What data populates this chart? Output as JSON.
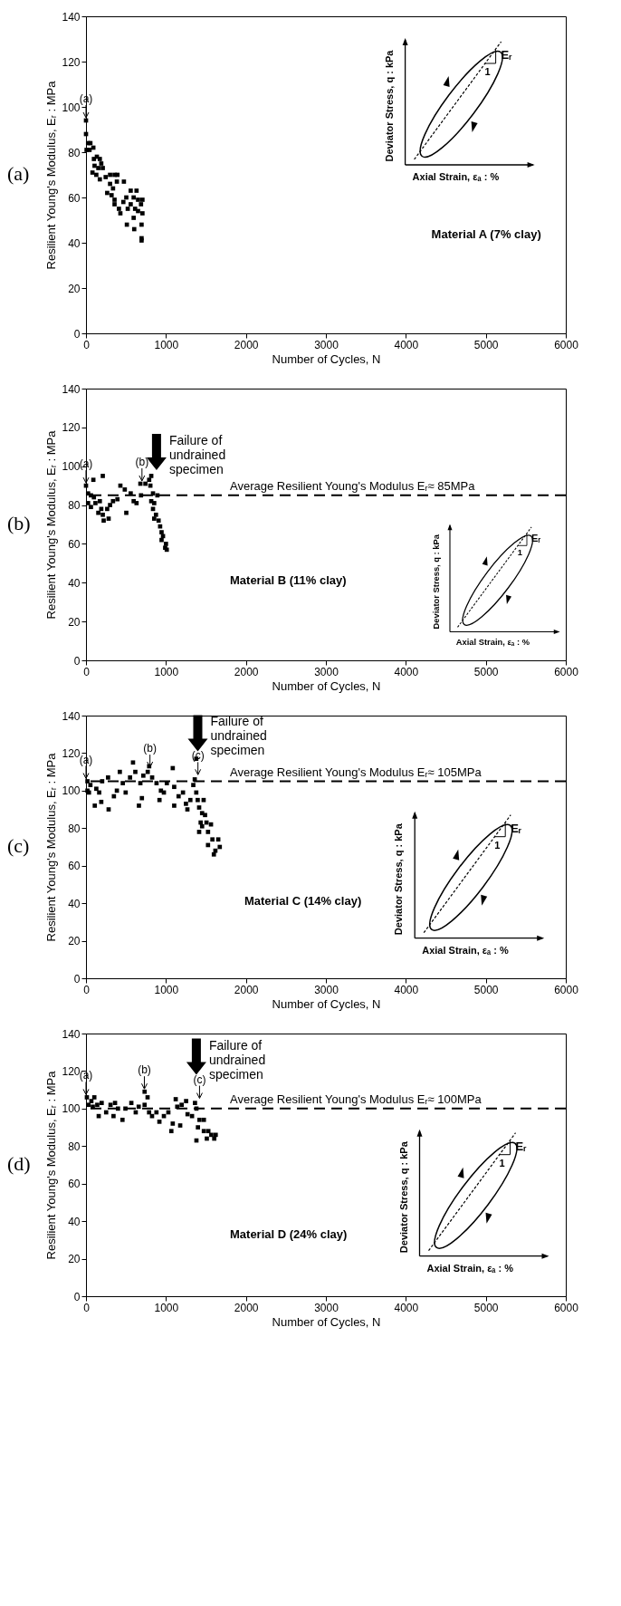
{
  "chart_data": [
    {
      "type": "scatter",
      "xlabel": "Number of Cycles, N",
      "ylabel": "Resilient Young's Modulus, Eᵣ : MPa",
      "xlim": [
        0,
        6000
      ],
      "ylim": [
        0,
        140
      ],
      "xticks": [
        0,
        1000,
        2000,
        3000,
        4000,
        5000,
        6000
      ],
      "yticks": [
        0,
        20,
        40,
        60,
        80,
        100,
        120,
        140
      ],
      "marker": "square",
      "series": [
        {
          "color": "#000000",
          "x": [
            0,
            0,
            26,
            55,
            7,
            44,
            92,
            99,
            136,
            173,
            191,
            107,
            154,
            210,
            81,
            129,
            173,
            246,
            301,
            357,
            393,
            265,
            301,
            338,
            386,
            474,
            320,
            357,
            357,
            412,
            430,
            467,
            504,
            522,
            559,
            559,
            596,
            632,
            614,
            651,
            688,
            706,
            651,
            706,
            596,
            511,
            603,
            695,
            695,
            695
          ],
          "values": [
            94,
            88,
            84,
            84,
            81,
            81,
            82,
            77,
            78,
            77,
            75,
            74,
            73,
            73,
            71,
            70,
            68,
            69,
            70,
            70,
            70,
            62,
            66,
            64,
            67,
            67,
            61,
            59,
            57,
            55,
            53,
            58,
            60,
            55,
            57,
            63,
            60,
            63,
            55,
            54,
            57,
            59,
            59,
            53,
            51,
            48,
            46,
            48,
            42,
            41
          ]
        }
      ],
      "annotations": [
        "(a)",
        "Material A (7% clay)",
        "Deviator Stress, q : kPa",
        "Axial Strain, εₐ : %",
        "Eᵣ",
        "1",
        {
          "text": "(a)",
          "x": 0,
          "y": 94
        }
      ]
    },
    {
      "type": "scatter",
      "xlabel": "Number of Cycles, N",
      "ylabel": "Resilient Young's Modulus, Eᵣ : MPa",
      "xlim": [
        0,
        6000
      ],
      "ylim": [
        0,
        140
      ],
      "xticks": [
        0,
        1000,
        2000,
        3000,
        4000,
        5000,
        6000
      ],
      "yticks": [
        0,
        20,
        40,
        60,
        80,
        100,
        120,
        140
      ],
      "marker": "square",
      "series": [
        {
          "color": "#000000",
          "x": [
            0,
            92,
            210,
            26,
            62,
            99,
            26,
            62,
            118,
            173,
            191,
            154,
            210,
            221,
            283,
            265,
            301,
            338,
            393,
            430,
            504,
            485,
            559,
            596,
            632,
            688,
            680,
            743,
            790,
            816,
            805,
            838,
            893,
            816,
            853,
            838,
            875,
            853,
            908,
            927,
            945,
            963,
            945,
            990,
            1000,
            1010
          ],
          "values": [
            90,
            93,
            95,
            86,
            85,
            84,
            81,
            79,
            81,
            82,
            78,
            76,
            75,
            72,
            73,
            78,
            80,
            82,
            83,
            90,
            76,
            88,
            86,
            82,
            81,
            85,
            91,
            91,
            93,
            95,
            90,
            86,
            85,
            82,
            81,
            78,
            75,
            73,
            72,
            69,
            66,
            64,
            62,
            58,
            60,
            57
          ]
        }
      ],
      "ref_lines": [
        {
          "axis": "y",
          "value": 85,
          "label": "Average Resilient Young's Modulus Eᵣ≈  85MPa"
        }
      ],
      "annotations": [
        "(b)",
        "Material B (11% clay)",
        "Deviator Stress, q : kPa",
        "Axial Strain, εₐ : %",
        "Eᵣ",
        "1",
        {
          "text": "(a)",
          "x": 0,
          "y": 90
        },
        {
          "text": "(b)",
          "x": 700,
          "y": 91
        },
        "Failure of undrained specimen"
      ]
    },
    {
      "type": "scatter",
      "xlabel": "Number of Cycles, N",
      "ylabel": "Resilient Young's Modulus, Eᵣ : MPa",
      "xlim": [
        0,
        6000
      ],
      "ylim": [
        0,
        140
      ],
      "xticks": [
        0,
        1000,
        2000,
        3000,
        4000,
        5000,
        6000
      ],
      "yticks": [
        0,
        20,
        40,
        60,
        80,
        100,
        120,
        140
      ],
      "marker": "square",
      "series": [
        {
          "color": "#000000",
          "x": [
            18,
            18,
            55,
            37,
            110,
            191,
            165,
            129,
            202,
            276,
            283,
            349,
            386,
            423,
            460,
            496,
            551,
            588,
            617,
            662,
            699,
            680,
            717,
            790,
            772,
            827,
            882,
            919,
            937,
            974,
            1011,
            1085,
            1103,
            1103,
            1158,
            1213,
            1250,
            1268,
            1305,
            1342,
            1360,
            1379,
            1379,
            1397,
            1415,
            1452,
            1471,
            1489,
            1507,
            1434,
            1452,
            1415,
            1526,
            1563,
            1581,
            1654,
            1673,
            1618,
            1526,
            1599
          ],
          "values": [
            105,
            100,
            103,
            99,
            92,
            94,
            99,
            101,
            105,
            107,
            90,
            97,
            100,
            110,
            104,
            99,
            107,
            115,
            110,
            92,
            96,
            104,
            108,
            113,
            110,
            107,
            104,
            95,
            100,
            99,
            104,
            112,
            102,
            92,
            97,
            99,
            93,
            90,
            95,
            103,
            106,
            117,
            99,
            95,
            91,
            88,
            95,
            87,
            83,
            83,
            81,
            78,
            78,
            82,
            74,
            74,
            70,
            68,
            71,
            66
          ]
        }
      ],
      "ref_lines": [
        {
          "axis": "y",
          "value": 105,
          "label": "Average Resilient Young's Modulus Eᵣ≈  105MPa"
        }
      ],
      "annotations": [
        "(c)",
        "Material C (14% clay)",
        "Deviator Stress, q : kPa",
        "Axial Strain, εₐ : %",
        "Eᵣ",
        "1",
        {
          "text": "(a)",
          "x": 0,
          "y": 105
        },
        {
          "text": "(b)",
          "x": 800,
          "y": 111
        },
        {
          "text": "(c)",
          "x": 1400,
          "y": 107
        },
        "Failure of undrained specimen"
      ]
    },
    {
      "type": "scatter",
      "xlabel": "Number of Cycles, N",
      "ylabel": "Resilient Young's Modulus, Eᵣ : MPa",
      "xlim": [
        0,
        6000
      ],
      "ylim": [
        0,
        140
      ],
      "xticks": [
        0,
        1000,
        2000,
        3000,
        4000,
        5000,
        6000
      ],
      "yticks": [
        0,
        20,
        40,
        60,
        80,
        100,
        120,
        140
      ],
      "marker": "square",
      "series": [
        {
          "color": "#000000",
          "x": [
            11,
            30,
            67,
            104,
            85,
            159,
            141,
            196,
            252,
            307,
            344,
            363,
            400,
            456,
            493,
            567,
            622,
            659,
            733,
            770,
            789,
            733,
            826,
            881,
            918,
            974,
            1030,
            1067,
            1085,
            1122,
            1141,
            1178,
            1196,
            1252,
            1270,
            1326,
            1363,
            1381,
            1381,
            1419,
            1400,
            1474,
            1474,
            1530,
            1567,
            1604,
            1511,
            1622
          ],
          "values": [
            106,
            102,
            104,
            106,
            101,
            96,
            102,
            103,
            98,
            102,
            96,
            103,
            100,
            94,
            100,
            103,
            98,
            101,
            109,
            106,
            98,
            102,
            96,
            98,
            93,
            96,
            98,
            88,
            92,
            105,
            101,
            91,
            102,
            104,
            97,
            96,
            103,
            100,
            83,
            94,
            90,
            94,
            88,
            88,
            86,
            84,
            84,
            86
          ]
        }
      ],
      "ref_lines": [
        {
          "axis": "y",
          "value": 100,
          "label": "Average Resilient Young's Modulus Eᵣ≈  100MPa"
        }
      ],
      "annotations": [
        "(d)",
        "Material D (24% clay)",
        "Deviator Stress, q : kPa",
        "Axial Strain, εₐ : %",
        "Eᵣ",
        "1",
        {
          "text": "(a)",
          "x": 0,
          "y": 106
        },
        {
          "text": "(b)",
          "x": 730,
          "y": 109
        },
        {
          "text": "(c)",
          "x": 1420,
          "y": 104
        },
        "Failure of undrained specimen"
      ]
    }
  ]
}
